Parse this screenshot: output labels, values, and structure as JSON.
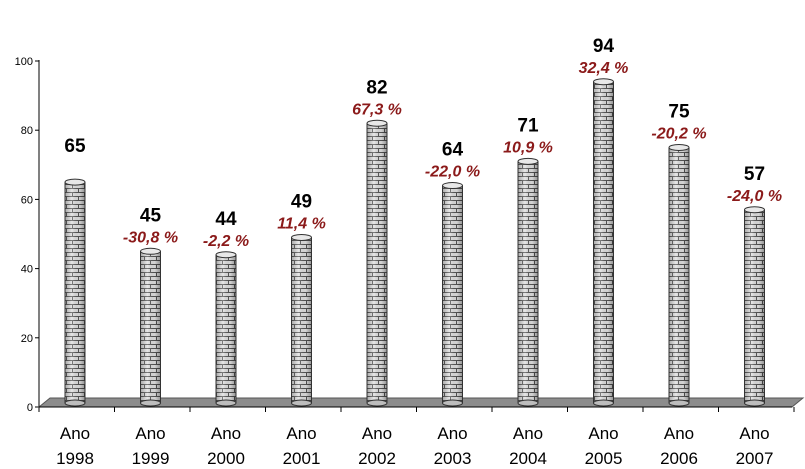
{
  "chart_data": {
    "type": "bar",
    "categories": [
      [
        "Ano",
        "1998"
      ],
      [
        "Ano",
        "1999"
      ],
      [
        "Ano",
        "2000"
      ],
      [
        "Ano",
        "2001"
      ],
      [
        "Ano",
        "2002"
      ],
      [
        "Ano",
        "2003"
      ],
      [
        "Ano",
        "2004"
      ],
      [
        "Ano",
        "2005"
      ],
      [
        "Ano",
        "2006"
      ],
      [
        "Ano",
        "2007"
      ]
    ],
    "values": [
      65,
      45,
      44,
      49,
      82,
      64,
      71,
      94,
      75,
      57
    ],
    "value_labels": [
      "65",
      "45",
      "44",
      "49",
      "82",
      "64",
      "71",
      "94",
      "75",
      "57"
    ],
    "change_labels": [
      "",
      "-30,8 %",
      "-2,2 %",
      "11,4 %",
      "67,3 %",
      "-22,0 %",
      "10,9 %",
      "32,4 %",
      "-20,2 %",
      "-24,0 %"
    ],
    "yticks": [
      "0",
      "20",
      "40",
      "60",
      "80",
      "100"
    ],
    "ylim": [
      0,
      100
    ],
    "grid": false,
    "style": "3d-brick-cylinders",
    "colors": {
      "bar_fill": "#d9d9d9",
      "brick_line": "#555555",
      "floor": "#8c8c8c",
      "change_label": "#8b1a1a",
      "value_label": "#000000"
    }
  }
}
